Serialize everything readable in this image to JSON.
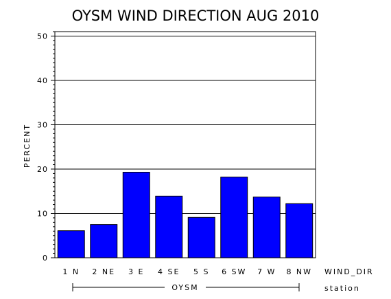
{
  "chart_data": {
    "type": "bar",
    "title": "OYSM WIND DIRECTION AUG 2010",
    "ylabel": "PERCENT",
    "xlabel": "WIND_DIR",
    "group_label": "OYSM",
    "group_axis_label": "station",
    "categories": [
      "1 N",
      "2 NE",
      "3 E",
      "4 SE",
      "5 S",
      "6 SW",
      "7 W",
      "8 NW"
    ],
    "values": [
      6.1,
      7.5,
      19.3,
      13.9,
      9.1,
      18.2,
      13.7,
      12.2
    ],
    "ylim": [
      0,
      51
    ],
    "yticks": [
      0,
      10,
      20,
      30,
      40,
      50
    ],
    "grid": true,
    "bar_color": "#0000ff"
  }
}
